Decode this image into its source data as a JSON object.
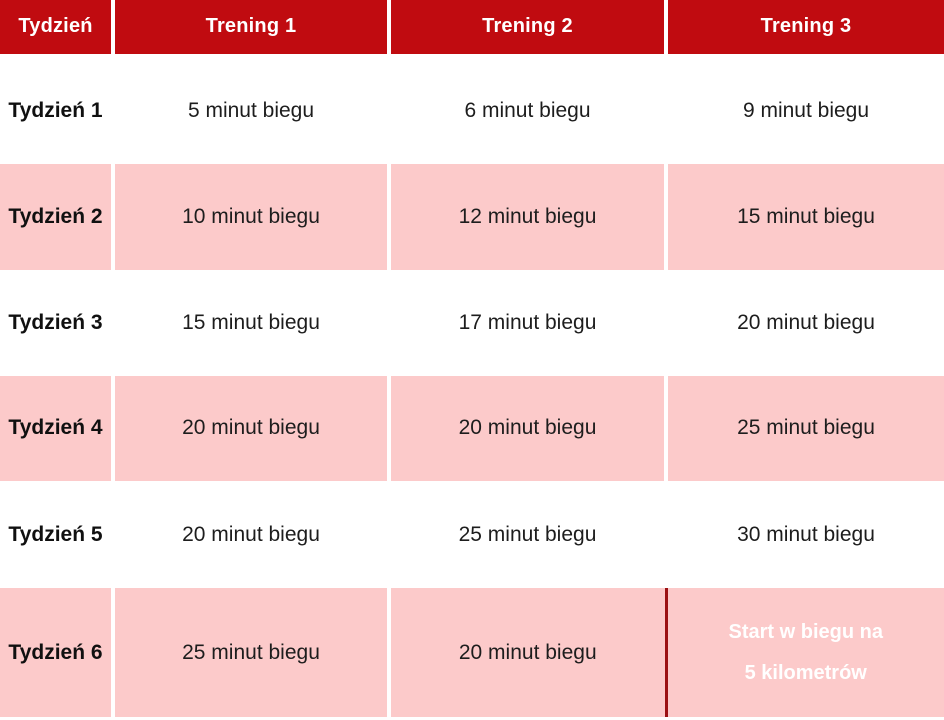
{
  "colors": {
    "header_red": "#C00B10",
    "row_pink": "#FCCACA",
    "row_white": "#FFFFFF",
    "text_dark": "#1D1D1D",
    "week_text": "#101010",
    "header_text": "#FFFFFF",
    "start_cell_red": "#C00B10",
    "start_cell_edge": "#9B1013"
  },
  "table": {
    "columns": [
      "Tydzień",
      "Trening 1",
      "Trening 2",
      "Trening 3"
    ],
    "rows": [
      {
        "cells": [
          "Tydzień 1",
          "5 minut biegu",
          "6 minut biegu",
          "9 minut biegu"
        ]
      },
      {
        "cells": [
          "Tydzień 2",
          "10 minut biegu",
          "12 minut biegu",
          "15 minut biegu"
        ]
      },
      {
        "cells": [
          "Tydzień 3",
          "15 minut biegu",
          "17 minut biegu",
          "20 minut biegu"
        ]
      },
      {
        "cells": [
          "Tydzień 4",
          "20 minut biegu",
          "20 minut biegu",
          "25 minut biegu"
        ]
      },
      {
        "cells": [
          "Tydzień 5",
          "20 minut biegu",
          "25 minut biegu",
          "30 minut biegu"
        ]
      },
      {
        "cells": [
          "Tydzień 6",
          "25 minut biegu",
          "20 minut biegu",
          "Start w biegu na 5 kilometrów"
        ],
        "highlight_lines": [
          "Start w biegu na",
          "5 kilometrów"
        ]
      }
    ]
  },
  "chart_data": {
    "type": "table",
    "columns": [
      "Tydzień",
      "Trening 1",
      "Trening 2",
      "Trening 3"
    ],
    "rows": [
      [
        "Tydzień 1",
        "5 minut biegu",
        "6 minut biegu",
        "9 minut biegu"
      ],
      [
        "Tydzień 2",
        "10 minut biegu",
        "12 minut biegu",
        "15 minut biegu"
      ],
      [
        "Tydzień 3",
        "15 minut biegu",
        "17 minut biegu",
        "20 minut biegu"
      ],
      [
        "Tydzień 4",
        "20 minut biegu",
        "20 minut biegu",
        "25 minut biegu"
      ],
      [
        "Tydzień 5",
        "20 minut biegu",
        "25 minut biegu",
        "30 minut biegu"
      ],
      [
        "Tydzień 6",
        "25 minut biegu",
        "20 minut biegu",
        "Start w biegu na 5 kilometrów"
      ]
    ],
    "categories": [
      "Tydzień 1",
      "Tydzień 2",
      "Tydzień 3",
      "Tydzień 4",
      "Tydzień 5",
      "Tydzień 6"
    ],
    "series": [
      {
        "name": "Trening 1",
        "values_minutes": [
          5,
          10,
          15,
          20,
          20,
          25
        ]
      },
      {
        "name": "Trening 2",
        "values_minutes": [
          6,
          12,
          17,
          20,
          25,
          20
        ]
      },
      {
        "name": "Trening 3",
        "values_minutes": [
          9,
          15,
          20,
          25,
          30,
          null
        ],
        "final_cell_text": "Start w biegu na 5 kilometrów"
      }
    ],
    "legend_position": "none",
    "grid": "banded-rows",
    "highlight_cell": {
      "row": 5,
      "col": 3,
      "style": "dark-red-fill-white-bold-text"
    }
  }
}
